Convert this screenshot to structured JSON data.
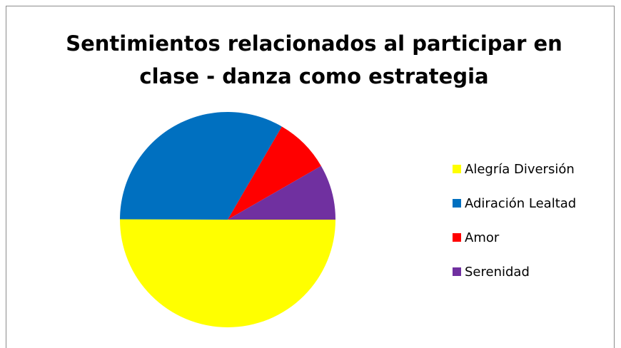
{
  "chart_data": {
    "type": "pie",
    "title": "Sentimientos relacionados al participar en clase - danza como estrategia",
    "categories": [
      "Alegría Diversión",
      "Adiración Lealtad",
      "Amor",
      "Serenidad"
    ],
    "values": [
      50,
      33.3,
      8.3,
      8.3
    ],
    "colors": [
      "#ffff00",
      "#0070c0",
      "#ff0000",
      "#7030a0"
    ],
    "legend": "right"
  }
}
